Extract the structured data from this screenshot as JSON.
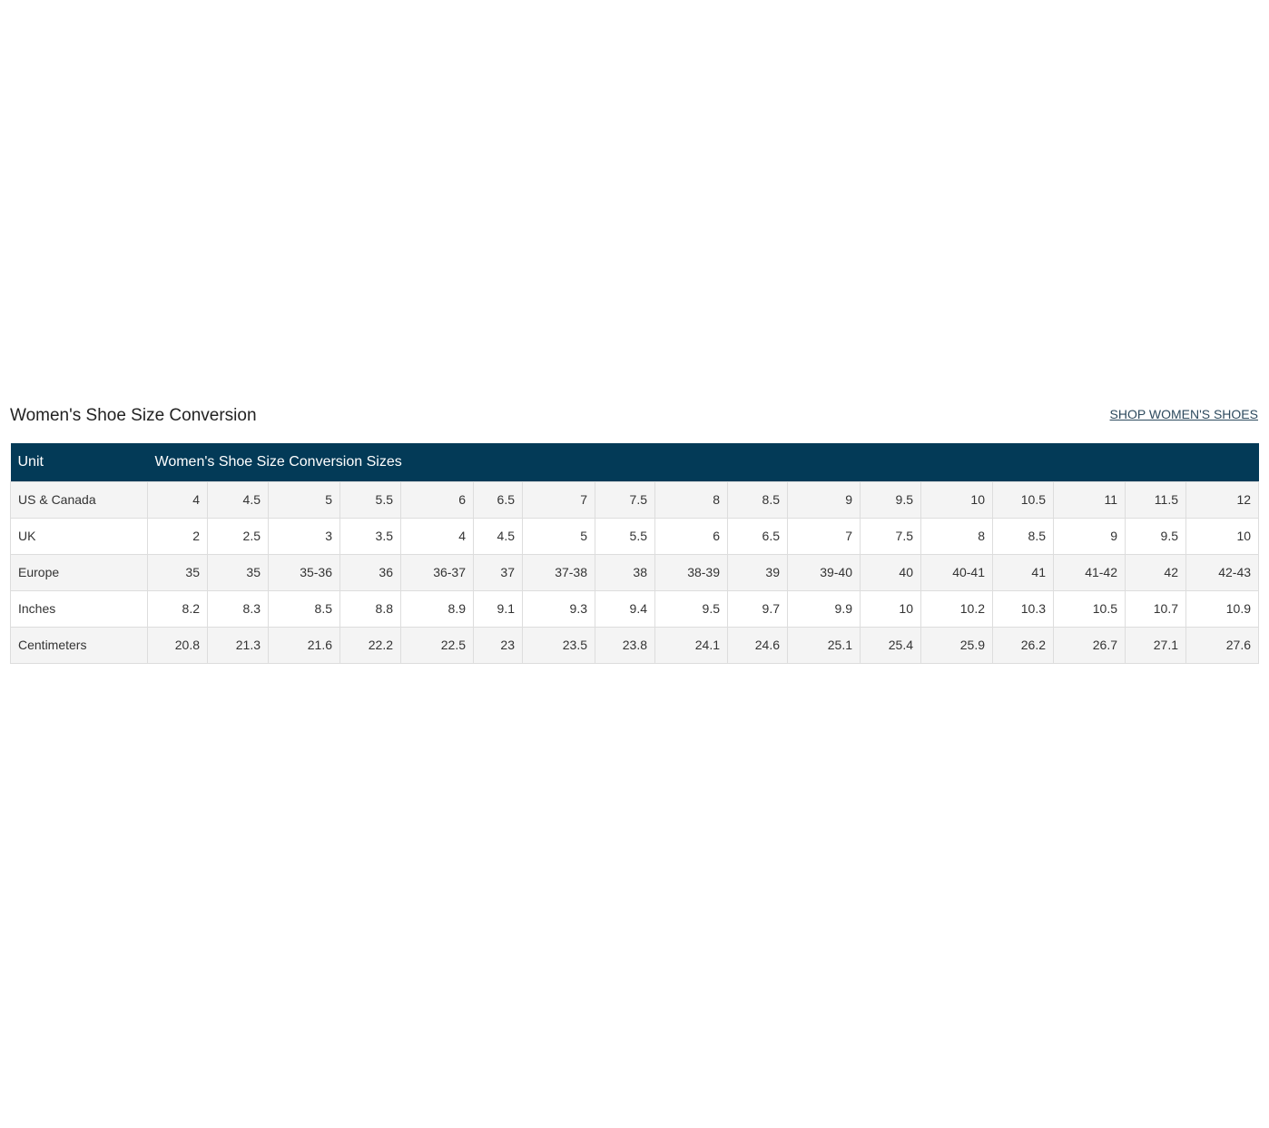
{
  "header": {
    "title": "Women's Shoe Size Conversion",
    "link": "SHOP WOMEN'S SHOES"
  },
  "table": {
    "columns": [
      "Unit",
      "Women's Shoe Size Conversion Sizes"
    ],
    "rows": [
      [
        "US & Canada",
        "4",
        "4.5",
        "5",
        "5.5",
        "6",
        "6.5",
        "7",
        "7.5",
        "8",
        "8.5",
        "9",
        "9.5",
        "10",
        "10.5",
        "11",
        "11.5",
        "12"
      ],
      [
        "UK",
        "2",
        "2.5",
        "3",
        "3.5",
        "4",
        "4.5",
        "5",
        "5.5",
        "6",
        "6.5",
        "7",
        "7.5",
        "8",
        "8.5",
        "9",
        "9.5",
        "10"
      ],
      [
        "Europe",
        "35",
        "35",
        "35-36",
        "36",
        "36-37",
        "37",
        "37-38",
        "38",
        "38-39",
        "39",
        "39-40",
        "40",
        "40-41",
        "41",
        "41-42",
        "42",
        "42-43"
      ],
      [
        "Inches",
        "8.2",
        "8.3",
        "8.5",
        "8.8",
        "8.9",
        "9.1",
        "9.3",
        "9.4",
        "9.5",
        "9.7",
        "9.9",
        "10",
        "10.2",
        "10.3",
        "10.5",
        "10.7",
        "10.9"
      ],
      [
        "Centimeters",
        "20.8",
        "21.3",
        "21.6",
        "22.2",
        "22.5",
        "23",
        "23.5",
        "23.8",
        "24.1",
        "24.6",
        "25.1",
        "25.4",
        "25.9",
        "26.2",
        "26.7",
        "27.1",
        "27.6"
      ]
    ]
  }
}
